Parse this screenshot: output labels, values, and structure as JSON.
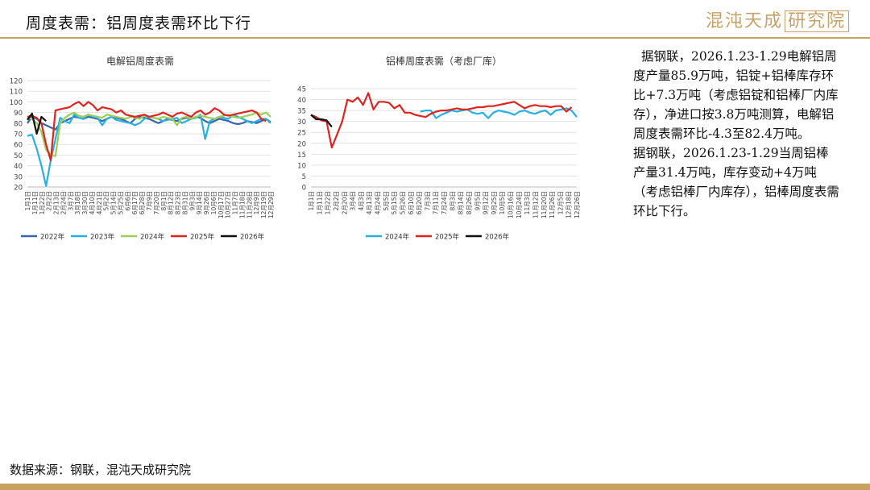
{
  "header": {
    "title": "周度表需：铝周度表需环比下行",
    "logo_text": "混沌天成",
    "logo_boxed": "研究院"
  },
  "colors": {
    "accent": "#c9a15f",
    "2022": "#3a64ad",
    "2023": "#27b0e0",
    "2024": "#9ccf54",
    "2025": "#e0231f",
    "2026": "#111111"
  },
  "chart_data": [
    {
      "type": "line",
      "title": "电解铝周度表需",
      "x": [
        "1月1日",
        "1月8日",
        "1月15日",
        "1月22日",
        "1月29日",
        "2月5日",
        "2月12日",
        "2月19日",
        "2月26日",
        "3月5日",
        "3月12日",
        "3月19日",
        "3月26日",
        "4月2日",
        "4月9日",
        "4月16日",
        "4月23日",
        "4月30日",
        "5月7日",
        "5月14日",
        "5月21日",
        "5月28日",
        "6月4日",
        "6月11日",
        "6月18日",
        "6月25日",
        "7月2日",
        "7月9日",
        "7月16日",
        "7月23日",
        "7月30日",
        "8月6日",
        "8月13日",
        "8月20日",
        "8月27日",
        "9月3日",
        "9月10日",
        "9月17日",
        "9月24日",
        "10月1日",
        "10月8日",
        "10月15日",
        "10月22日",
        "10月29日",
        "11月5日",
        "11月12日",
        "11月19日",
        "11月26日",
        "12月3日",
        "12月10日",
        "12月17日",
        "12月24日",
        "12月31日"
      ],
      "tick_labels": [
        "1月1日",
        "1月11日",
        "1月22日",
        "2月2日",
        "2月13日",
        "2月24日",
        "3月7日",
        "3月18日",
        "3月30日",
        "4月10日",
        "4月21日",
        "5月2日",
        "5月14日",
        "5月25日",
        "6月6日",
        "6月17日",
        "6月28日",
        "7月9日",
        "7月20日",
        "8月1日",
        "8月12日",
        "8月23日",
        "8月31日",
        "9月3日",
        "9月14日",
        "9月26日",
        "10月6日",
        "10月17日",
        "10月27日",
        "11月7日",
        "11月18日",
        "11月28日",
        "12月9日",
        "12月19日",
        "12月29日"
      ],
      "ylim": [
        20,
        120
      ],
      "yticks": [
        20,
        30,
        40,
        50,
        60,
        70,
        80,
        90,
        100,
        110,
        120
      ],
      "series": [
        {
          "name": "2022年",
          "color": "#3a64ad",
          "values": [
            80,
            86,
            84,
            80,
            78,
            76,
            74,
            80,
            82,
            84,
            86,
            85,
            84,
            86,
            85,
            84,
            82,
            84,
            86,
            85,
            84,
            82,
            80,
            84,
            86,
            85,
            84,
            82,
            80,
            82,
            84,
            83,
            82,
            84,
            85,
            84,
            86,
            85,
            82,
            80,
            82,
            84,
            83,
            82,
            80,
            79,
            80,
            82,
            81,
            80,
            82,
            84,
            81
          ]
        },
        {
          "name": "2023年",
          "color": "#27b0e0",
          "values": [
            68,
            69,
            56,
            40,
            21,
            45,
            65,
            85,
            82,
            80,
            88,
            85,
            84,
            88,
            86,
            85,
            78,
            84,
            86,
            83,
            82,
            81,
            80,
            78,
            80,
            84,
            86,
            85,
            84,
            82,
            83,
            84,
            85,
            80,
            82,
            84,
            85,
            88,
            65,
            82,
            84,
            86,
            85,
            84,
            88,
            86,
            84,
            82,
            80,
            82,
            84,
            84,
            80
          ]
        },
        {
          "name": "2024年",
          "color": "#9ccf54",
          "values": [
            85,
            84,
            80,
            72,
            55,
            50,
            49,
            80,
            85,
            88,
            90,
            87,
            86,
            88,
            87,
            86,
            85,
            88,
            87,
            86,
            85,
            84,
            86,
            85,
            84,
            87,
            86,
            85,
            84,
            86,
            85,
            84,
            78,
            85,
            86,
            84,
            86,
            87,
            86,
            85,
            84,
            86,
            87,
            88,
            86,
            85,
            86,
            87,
            88,
            90,
            88,
            90,
            86
          ]
        },
        {
          "name": "2025年",
          "color": "#e0231f",
          "values": [
            86,
            87,
            85,
            80,
            60,
            45,
            92,
            93,
            94,
            95,
            98,
            100,
            96,
            100,
            97,
            92,
            95,
            94,
            93,
            90,
            92,
            88,
            87,
            86,
            87,
            88,
            86,
            87,
            88,
            90,
            88,
            86,
            89,
            90,
            88,
            86,
            90,
            92,
            88,
            90,
            94,
            92,
            88,
            87,
            88,
            89,
            90,
            91,
            92,
            90,
            84,
            82,
            null
          ]
        },
        {
          "name": "2026年",
          "color": "#111111",
          "values": [
            83,
            89,
            70,
            86,
            82,
            null,
            null,
            null,
            null,
            null,
            null,
            null,
            null,
            null,
            null,
            null,
            null,
            null,
            null,
            null,
            null,
            null,
            null,
            null,
            null,
            null,
            null,
            null,
            null,
            null,
            null,
            null,
            null,
            null,
            null,
            null,
            null,
            null,
            null,
            null,
            null,
            null,
            null,
            null,
            null,
            null,
            null,
            null,
            null,
            null,
            null,
            null,
            null
          ]
        }
      ]
    },
    {
      "type": "line",
      "title": "铝棒周度表需（考虑厂库）",
      "x": [
        "1月1日",
        "1月8日",
        "1月15日",
        "1月22日",
        "1月29日",
        "2月5日",
        "2月12日",
        "2月19日",
        "2月26日",
        "3月5日",
        "3月12日",
        "3月19日",
        "3月26日",
        "4月2日",
        "4月9日",
        "4月16日",
        "4月23日",
        "4月30日",
        "5月7日",
        "5月14日",
        "5月21日",
        "5月28日",
        "6月4日",
        "6月11日",
        "6月18日",
        "6月25日",
        "7月2日",
        "7月9日",
        "7月16日",
        "7月23日",
        "7月30日",
        "8月6日",
        "8月13日",
        "8月20日",
        "8月27日",
        "9月3日",
        "9月10日",
        "9月17日",
        "9月24日",
        "10月1日",
        "10月8日",
        "10月15日",
        "10月22日",
        "10月29日",
        "11月5日",
        "11月12日",
        "11月19日",
        "11月26日",
        "12月3日",
        "12月10日",
        "12月17日",
        "12月24日"
      ],
      "tick_labels": [
        "1月1日",
        "1月11日",
        "1月22日",
        "2月2日",
        "2月20日",
        "3月4日",
        "4月3日",
        "4月13日",
        "4月24日",
        "5月5日",
        "5月15日",
        "5月26日",
        "6月10日",
        "6月20日",
        "7月3日",
        "7月11日",
        "7月24日",
        "8月3日",
        "8月14日",
        "8月26日",
        "9月5日",
        "9月12日",
        "9月25日",
        "10月5日",
        "10月16日",
        "10月24日",
        "11月3日",
        "11月12日",
        "11月20日",
        "11月26日",
        "12月5日",
        "12月18日",
        "12月26日"
      ],
      "ylim": [
        0,
        45
      ],
      "yticks": [
        0,
        5,
        10,
        15,
        20,
        25,
        30,
        35,
        40,
        45
      ],
      "series": [
        {
          "name": "2024年",
          "color": "#27b0e0",
          "values": [
            null,
            null,
            null,
            null,
            null,
            null,
            null,
            null,
            null,
            null,
            null,
            null,
            null,
            null,
            null,
            null,
            null,
            null,
            null,
            null,
            null,
            34.5,
            35,
            35,
            31.5,
            33,
            34,
            35,
            34.5,
            35,
            35.5,
            34,
            33.5,
            34,
            31.5,
            34,
            35,
            34.5,
            34,
            33,
            34.5,
            35,
            34,
            33.5,
            34.5,
            35,
            33,
            35,
            35.5,
            36,
            35,
            32
          ]
        },
        {
          "name": "2025年",
          "color": "#e0231f",
          "values": [
            33,
            32,
            30.5,
            30,
            18,
            24,
            30,
            40,
            39,
            41,
            37.5,
            43,
            35.5,
            39,
            39,
            38.5,
            36,
            37.5,
            34,
            34,
            33,
            32.5,
            32,
            33.5,
            34.5,
            35,
            35,
            35.5,
            36,
            35.5,
            35.5,
            36,
            36.5,
            36.5,
            37,
            37,
            37.5,
            38,
            38.5,
            39,
            37.5,
            36,
            37,
            37.5,
            37,
            37,
            36.5,
            37,
            37,
            34.5,
            36.5,
            null
          ]
        },
        {
          "name": "2026年",
          "color": "#111111",
          "values": [
            33,
            31,
            31,
            30.5,
            27.5,
            null,
            null,
            null,
            null,
            null,
            null,
            null,
            null,
            null,
            null,
            null,
            null,
            null,
            null,
            null,
            null,
            null,
            null,
            null,
            null,
            null,
            null,
            null,
            null,
            null,
            null,
            null,
            null,
            null,
            null,
            null,
            null,
            null,
            null,
            null,
            null,
            null,
            null,
            null,
            null,
            null,
            null,
            null,
            null,
            null,
            null,
            null
          ]
        }
      ]
    }
  ],
  "notes": [
    "据钢联，2026.1.23-1.29电解铝周度产量85.9万吨，铝锭+铝棒库存环比+7.3万吨（考虑铝锭和铝棒厂内库存），净进口按3.8万吨测算，电解铝周度表需环比-4.3至82.4万吨。",
    "据钢联，2026.1.23-1.29当周铝棒产量31.4万吨，库存变动+4万吨（考虑铝棒厂内库存），铝棒周度表需环比下行。"
  ],
  "footer": {
    "source": "数据来源：钢联，混沌天成研究院"
  }
}
